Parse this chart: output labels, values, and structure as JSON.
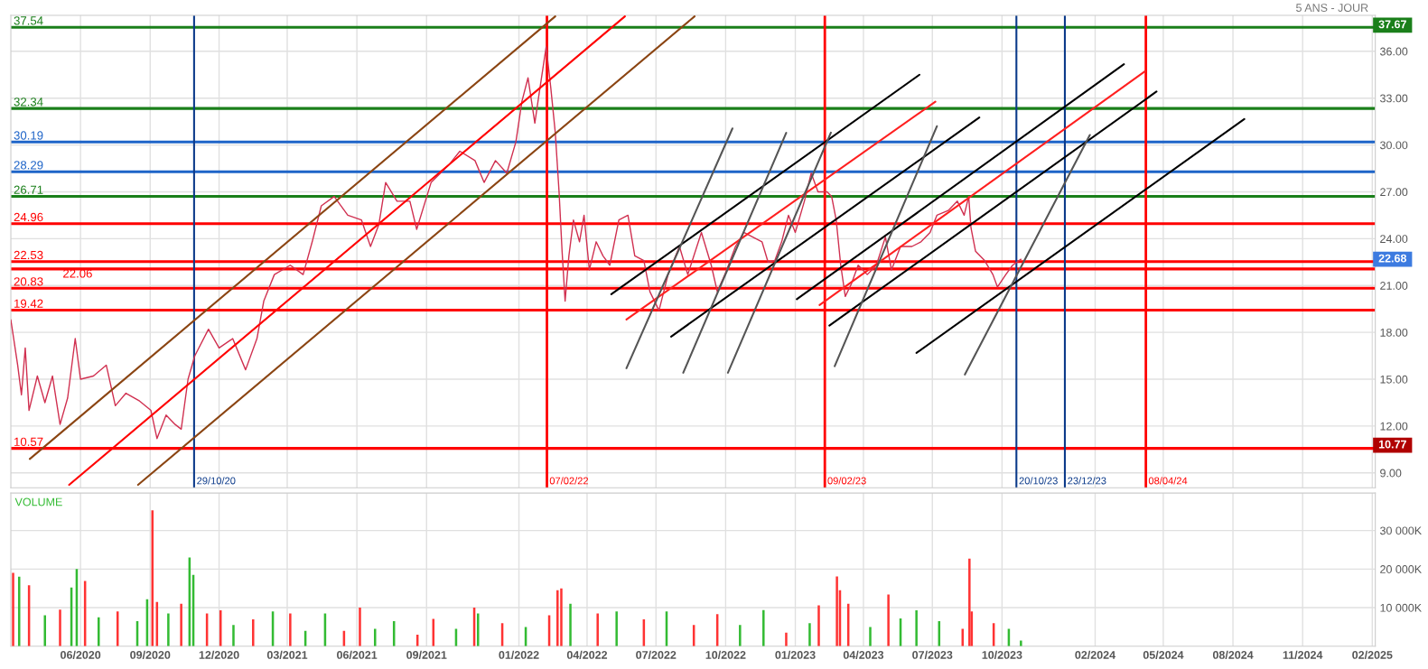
{
  "chart_data": [
    {
      "type": "line",
      "subtitle": "5 ANS - JOUR",
      "xlim": [
        "2020-03-01",
        "2025-02-05"
      ],
      "ylim": [
        8.05,
        38.3
      ],
      "xticks": [
        {
          "value": "2020-06-01",
          "label": null
        },
        {
          "value": "2020-09-01",
          "label": null
        },
        {
          "value": "2020-12-01",
          "label": null
        },
        {
          "value": "2021-03-01",
          "label": null
        },
        {
          "value": "2021-06-01",
          "label": null
        },
        {
          "value": "2021-09-01",
          "label": null
        },
        {
          "value": "2022-01-01",
          "label": null
        },
        {
          "value": "2022-04-01",
          "label": null
        },
        {
          "value": "2022-07-01",
          "label": null
        },
        {
          "value": "2022-10-01",
          "label": null
        },
        {
          "value": "2023-01-01",
          "label": null
        },
        {
          "value": "2023-04-01",
          "label": null
        },
        {
          "value": "2023-07-01",
          "label": null
        },
        {
          "value": "2023-10-01",
          "label": null
        },
        {
          "value": "2024-02-01",
          "label": null
        },
        {
          "value": "2024-05-01",
          "label": null
        },
        {
          "value": "2024-08-01",
          "label": null
        },
        {
          "value": "2024-11-01",
          "label": null
        },
        {
          "value": "2025-02-01",
          "label": null
        }
      ],
      "yticks": [
        {
          "value": 9,
          "label": "9.00"
        },
        {
          "value": 12,
          "label": "12.00"
        },
        {
          "value": 15,
          "label": "15.00"
        },
        {
          "value": 18,
          "label": "18.00"
        },
        {
          "value": 21,
          "label": "21.00"
        },
        {
          "value": 24,
          "label": "24.00"
        },
        {
          "value": 27,
          "label": "27.00"
        },
        {
          "value": 30,
          "label": "30.00"
        },
        {
          "value": 33,
          "label": "33.00"
        },
        {
          "value": 36,
          "label": "36.00"
        }
      ],
      "tick_labels": "y",
      "grid": true,
      "legend": false,
      "series": [
        {
          "color": "#d03050",
          "x": [
            "2020-03-01",
            "2020-03-10",
            "2020-03-15",
            "2020-03-20",
            "2020-03-25",
            "2020-04-05",
            "2020-04-15",
            "2020-04-25",
            "2020-05-05",
            "2020-05-15",
            "2020-05-25",
            "2020-06-01",
            "2020-06-18",
            "2020-07-05",
            "2020-07-17",
            "2020-07-31",
            "2020-08-18",
            "2020-09-02",
            "2020-09-10",
            "2020-09-22",
            "2020-10-04",
            "2020-10-12",
            "2020-10-21",
            "2020-10-30",
            "2020-11-17",
            "2020-12-01",
            "2020-12-19",
            "2021-01-05",
            "2021-01-20",
            "2021-01-29",
            "2021-02-12",
            "2021-03-05",
            "2021-03-22",
            "2021-04-03",
            "2021-04-15",
            "2021-05-02",
            "2021-05-20",
            "2021-06-07",
            "2021-06-19",
            "2021-06-30",
            "2021-07-09",
            "2021-07-24",
            "2021-08-10",
            "2021-08-19",
            "2021-09-07",
            "2021-09-30",
            "2021-10-15",
            "2021-11-04",
            "2021-11-16",
            "2021-12-01",
            "2021-12-16",
            "2021-12-28",
            "2022-01-05",
            "2022-01-13",
            "2022-01-22",
            "2022-01-28",
            "2022-02-06",
            "2022-02-12",
            "2022-02-18",
            "2022-02-23",
            "2022-02-27",
            "2022-03-03",
            "2022-03-08",
            "2022-03-14",
            "2022-03-22",
            "2022-03-28",
            "2022-04-04",
            "2022-04-13",
            "2022-04-22",
            "2022-05-01",
            "2022-05-13",
            "2022-05-25",
            "2022-06-03",
            "2022-06-15",
            "2022-06-23",
            "2022-07-05",
            "2022-07-17",
            "2022-08-01",
            "2022-08-12",
            "2022-08-30",
            "2022-09-12",
            "2022-09-20",
            "2022-09-30",
            "2022-10-14",
            "2022-10-25",
            "2022-11-06",
            "2022-11-18",
            "2022-11-26",
            "2022-12-05",
            "2022-12-14",
            "2022-12-23",
            "2023-01-01",
            "2023-01-13",
            "2023-01-22",
            "2023-01-31",
            "2023-02-12",
            "2023-02-18",
            "2023-02-24",
            "2023-03-02",
            "2023-03-08",
            "2023-03-16",
            "2023-03-25",
            "2023-04-06",
            "2023-04-18",
            "2023-04-30",
            "2023-05-08",
            "2023-05-20",
            "2023-06-04",
            "2023-06-16",
            "2023-06-28",
            "2023-07-07",
            "2023-07-22",
            "2023-08-03",
            "2023-08-12",
            "2023-08-18",
            "2023-08-21",
            "2023-08-27",
            "2023-09-08",
            "2023-09-19",
            "2023-09-25",
            "2023-10-06",
            "2023-10-15",
            "2023-10-26"
          ],
          "values": [
            18.8,
            15.9,
            14.0,
            17.0,
            13.0,
            15.2,
            13.5,
            15.2,
            12.1,
            13.8,
            17.6,
            15.0,
            15.2,
            15.9,
            13.3,
            14.1,
            13.6,
            13.0,
            11.2,
            12.7,
            12.1,
            11.8,
            15.0,
            16.5,
            18.2,
            17.0,
            17.6,
            15.6,
            17.6,
            20.0,
            21.7,
            22.3,
            21.7,
            23.8,
            26.1,
            26.7,
            25.5,
            25.2,
            23.5,
            24.9,
            27.6,
            26.4,
            26.4,
            24.6,
            27.6,
            28.7,
            29.6,
            29.0,
            27.6,
            29.0,
            28.2,
            30.2,
            32.8,
            34.3,
            31.4,
            33.4,
            36.3,
            33.7,
            30.8,
            27.0,
            23.2,
            20.0,
            22.9,
            25.2,
            23.8,
            25.5,
            22.0,
            23.8,
            22.9,
            22.3,
            25.2,
            25.5,
            22.9,
            22.6,
            20.6,
            19.4,
            21.7,
            23.5,
            21.7,
            24.4,
            22.3,
            20.6,
            21.7,
            23.5,
            24.4,
            24.1,
            23.8,
            22.5,
            22.6,
            23.8,
            25.5,
            24.4,
            26.4,
            28.2,
            27.0,
            27.0,
            26.7,
            25.2,
            22.3,
            20.3,
            21.1,
            22.3,
            21.7,
            22.3,
            24.1,
            22.0,
            23.5,
            23.5,
            23.8,
            24.4,
            25.5,
            25.8,
            26.4,
            25.5,
            26.7,
            24.7,
            23.2,
            22.6,
            21.7,
            20.9,
            21.7,
            22.3,
            22.68
          ]
        },
        {
          "color": "#8b4513",
          "x": [
            "2020-03-26",
            "2022-02-18"
          ],
          "values": [
            9.89,
            38.24
          ]
        },
        {
          "color": "#ff0000",
          "x": [
            "2020-05-17",
            "2022-05-21"
          ],
          "values": [
            8.23,
            38.24
          ]
        },
        {
          "color": "#8b4513",
          "x": [
            "2020-08-16",
            "2022-08-21"
          ],
          "values": [
            8.23,
            38.24
          ]
        },
        {
          "color": "#000000",
          "x": [
            "2022-05-03",
            "2023-06-14"
          ],
          "values": [
            20.44,
            34.5
          ]
        },
        {
          "color": "#ff2020",
          "x": [
            "2022-05-23",
            "2023-07-05"
          ],
          "values": [
            18.82,
            32.77
          ]
        },
        {
          "color": "#000000",
          "x": [
            "2022-07-21",
            "2023-09-01"
          ],
          "values": [
            17.73,
            31.76
          ]
        },
        {
          "color": "#000000",
          "x": [
            "2023-01-03",
            "2024-03-10"
          ],
          "values": [
            20.12,
            35.17
          ]
        },
        {
          "color": "#ff2020",
          "x": [
            "2023-02-02",
            "2024-04-07"
          ],
          "values": [
            19.75,
            34.73
          ]
        },
        {
          "color": "#000000",
          "x": [
            "2023-02-15",
            "2024-04-22"
          ],
          "values": [
            18.43,
            33.42
          ]
        },
        {
          "color": "#000000",
          "x": [
            "2023-06-10",
            "2024-08-16"
          ],
          "values": [
            16.68,
            31.66
          ]
        },
        {
          "color": "#555555",
          "x": [
            "2022-05-23",
            "2022-10-10"
          ],
          "values": [
            15.7,
            31.06
          ]
        },
        {
          "color": "#555555",
          "x": [
            "2022-08-06",
            "2022-12-20"
          ],
          "values": [
            15.41,
            30.78
          ]
        },
        {
          "color": "#555555",
          "x": [
            "2022-10-04",
            "2023-02-17"
          ],
          "values": [
            15.41,
            30.79
          ]
        },
        {
          "color": "#555555",
          "x": [
            "2023-02-22",
            "2023-07-07"
          ],
          "values": [
            15.83,
            31.2
          ]
        },
        {
          "color": "#555555",
          "x": [
            "2023-08-13",
            "2024-01-25"
          ],
          "values": [
            15.3,
            30.64
          ]
        }
      ],
      "ref_lines": [
        {
          "axis": "y",
          "value": 37.54,
          "label": "37.54",
          "color": "#1a7f1a"
        },
        {
          "axis": "y",
          "value": 32.34,
          "label": "32.34",
          "color": "#1a7f1a"
        },
        {
          "axis": "y",
          "value": 30.19,
          "label": "30.19",
          "color": "#1e64c8"
        },
        {
          "axis": "y",
          "value": 28.29,
          "label": "28.29",
          "color": "#1e64c8"
        },
        {
          "axis": "y",
          "value": 26.71,
          "label": "26.71",
          "color": "#1a7f1a"
        },
        {
          "axis": "y",
          "value": 24.96,
          "label": "24.96",
          "color": "#ff0000"
        },
        {
          "axis": "y",
          "value": 22.53,
          "label": "22.53",
          "color": "#ff0000"
        },
        {
          "axis": "y",
          "value": 22.06,
          "label": "22.06",
          "color": "#ff0000"
        },
        {
          "axis": "y",
          "value": 20.83,
          "label": "20.83",
          "color": "#ff0000"
        },
        {
          "axis": "y",
          "value": 19.42,
          "label": "19.42",
          "color": "#ff0000"
        },
        {
          "axis": "y",
          "value": 10.57,
          "label": "10.57",
          "color": "#ff0000"
        },
        {
          "axis": "x",
          "value": "2020-10-29",
          "label": "29/10/20",
          "color": "#0b3a8a"
        },
        {
          "axis": "x",
          "value": "2022-02-07",
          "label": "07/02/22",
          "color": "#ff0000"
        },
        {
          "axis": "x",
          "value": "2023-02-09",
          "label": "09/02/23",
          "color": "#ff0000"
        },
        {
          "axis": "x",
          "value": "2023-10-20",
          "label": "20/10/23",
          "color": "#0b3a8a"
        },
        {
          "axis": "x",
          "value": "2023-12-23",
          "label": "23/12/23",
          "color": "#0b3a8a"
        },
        {
          "axis": "x",
          "value": "2024-04-08",
          "label": "08/04/24",
          "color": "#ff0000"
        }
      ],
      "annotations": [
        {
          "text": "37.67",
          "x": "2025-02-05",
          "y": 37.67
        },
        {
          "text": "22.68",
          "x": "2025-02-05",
          "y": 22.68
        },
        {
          "text": "10.77",
          "x": "2025-02-05",
          "y": 10.77
        }
      ]
    },
    {
      "type": "bar",
      "title": "VOLUME",
      "xlim": [
        "2020-03-01",
        "2025-02-05"
      ],
      "ylim": [
        0,
        39700
      ],
      "xticks": [
        {
          "value": "2020-06-01",
          "label": "06/2020"
        },
        {
          "value": "2020-09-01",
          "label": "09/2020"
        },
        {
          "value": "2020-12-01",
          "label": "12/2020"
        },
        {
          "value": "2021-03-01",
          "label": "03/2021"
        },
        {
          "value": "2021-06-01",
          "label": "06/2021"
        },
        {
          "value": "2021-09-01",
          "label": "09/2021"
        },
        {
          "value": "2022-01-01",
          "label": "01/2022"
        },
        {
          "value": "2022-04-01",
          "label": "04/2022"
        },
        {
          "value": "2022-07-01",
          "label": "07/2022"
        },
        {
          "value": "2022-10-01",
          "label": "10/2022"
        },
        {
          "value": "2023-01-01",
          "label": "01/2023"
        },
        {
          "value": "2023-04-01",
          "label": "04/2023"
        },
        {
          "value": "2023-07-01",
          "label": "07/2023"
        },
        {
          "value": "2023-10-01",
          "label": "10/2023"
        },
        {
          "value": "2024-02-01",
          "label": "02/2024"
        },
        {
          "value": "2024-05-01",
          "label": "05/2024"
        },
        {
          "value": "2024-08-01",
          "label": "08/2024"
        },
        {
          "value": "2024-11-01",
          "label": "11/2024"
        },
        {
          "value": "2025-02-01",
          "label": "02/2025"
        }
      ],
      "yticks": [
        {
          "value": 10000,
          "label": "10 000K"
        },
        {
          "value": 20000,
          "label": "20 000K"
        },
        {
          "value": 30000,
          "label": "30 000K"
        }
      ],
      "grid": true,
      "legend": false,
      "x": [
        "2020-03-04",
        "2020-03-12",
        "2020-03-25",
        "2020-04-15",
        "2020-05-05",
        "2020-05-20",
        "2020-05-27",
        "2020-06-07",
        "2020-06-25",
        "2020-07-20",
        "2020-08-15",
        "2020-08-28",
        "2020-09-04",
        "2020-09-10",
        "2020-09-25",
        "2020-10-12",
        "2020-10-23",
        "2020-10-28",
        "2020-11-15",
        "2020-12-03",
        "2020-12-20",
        "2021-01-15",
        "2021-02-10",
        "2021-03-05",
        "2021-03-25",
        "2021-04-20",
        "2021-05-15",
        "2021-06-05",
        "2021-06-25",
        "2021-07-20",
        "2021-08-20",
        "2021-09-10",
        "2021-10-10",
        "2021-11-03",
        "2021-11-08",
        "2021-12-10",
        "2022-01-10",
        "2022-02-10",
        "2022-02-21",
        "2022-02-26",
        "2022-03-10",
        "2022-04-15",
        "2022-05-10",
        "2022-06-15",
        "2022-07-15",
        "2022-08-20",
        "2022-09-20",
        "2022-10-20",
        "2022-11-20",
        "2022-12-20",
        "2023-01-20",
        "2023-02-01",
        "2023-02-25",
        "2023-03-01",
        "2023-03-12",
        "2023-04-10",
        "2023-05-04",
        "2023-05-20",
        "2023-06-10",
        "2023-07-10",
        "2023-08-10",
        "2023-08-19",
        "2023-08-22",
        "2023-09-20",
        "2023-10-10",
        "2023-10-26"
      ],
      "values": [
        19000,
        18000,
        15800,
        8000,
        9500,
        15200,
        20000,
        16900,
        7500,
        9000,
        6500,
        12200,
        35200,
        11500,
        8500,
        11000,
        23000,
        18500,
        8500,
        9300,
        5500,
        7000,
        9000,
        8500,
        4000,
        8500,
        4000,
        10000,
        4500,
        6500,
        3000,
        7100,
        4500,
        10000,
        8500,
        6000,
        5000,
        8000,
        14500,
        15000,
        11000,
        8500,
        9000,
        7000,
        9000,
        5500,
        8300,
        5500,
        9400,
        3500,
        6000,
        10600,
        18100,
        14500,
        11000,
        5000,
        13400,
        7200,
        9300,
        6500,
        4500,
        22700,
        9000,
        6000,
        4500,
        1500
      ],
      "colors": [
        "#ff3333",
        "#33bb33",
        "#ff3333",
        "#33bb33",
        "#ff3333",
        "#33bb33",
        "#33bb33",
        "#ff3333",
        "#33bb33",
        "#ff3333",
        "#33bb33",
        "#33bb33",
        "#ff3333",
        "#ff3333",
        "#33bb33",
        "#ff3333",
        "#33bb33",
        "#33bb33",
        "#ff3333",
        "#ff3333",
        "#33bb33",
        "#ff3333",
        "#33bb33",
        "#ff3333",
        "#33bb33",
        "#33bb33",
        "#ff3333",
        "#ff3333",
        "#33bb33",
        "#33bb33",
        "#ff3333",
        "#ff3333",
        "#33bb33",
        "#ff3333",
        "#33bb33",
        "#ff3333",
        "#33bb33",
        "#ff3333",
        "#ff3333",
        "#ff3333",
        "#33bb33",
        "#ff3333",
        "#33bb33",
        "#ff3333",
        "#33bb33",
        "#ff3333",
        "#ff3333",
        "#33bb33",
        "#33bb33",
        "#ff3333",
        "#33bb33",
        "#ff3333",
        "#ff3333",
        "#ff3333",
        "#ff3333",
        "#33bb33",
        "#ff3333",
        "#33bb33",
        "#33bb33",
        "#33bb33",
        "#ff3333",
        "#ff3333",
        "#ff3333",
        "#ff3333",
        "#33bb33",
        "#33bb33"
      ]
    }
  ]
}
